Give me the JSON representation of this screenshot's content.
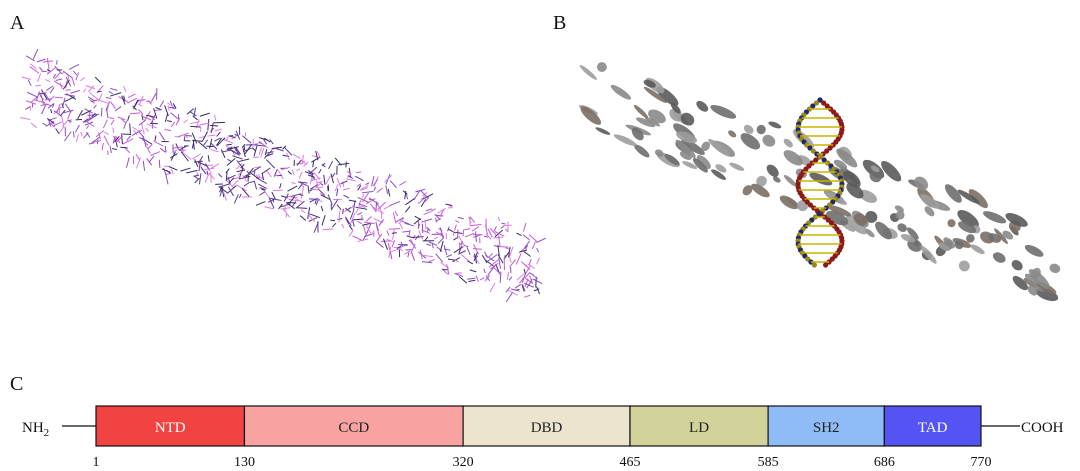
{
  "panels": [
    {
      "label": "A"
    },
    {
      "label": "B"
    },
    {
      "label": "C"
    }
  ],
  "domain_diagram": {
    "n_terminus": {
      "text": "NH",
      "subscript": "2"
    },
    "c_terminus": "COOH",
    "positions": [
      1,
      130,
      320,
      465,
      585,
      686,
      770
    ],
    "domains": [
      {
        "name": "NTD",
        "color": "#f24343",
        "text_color": "#ffffff"
      },
      {
        "name": "CCD",
        "color": "#f8a2a2",
        "text_color": "#222222"
      },
      {
        "name": "DBD",
        "color": "#ece4cf",
        "text_color": "#222222"
      },
      {
        "name": "LD",
        "color": "#d1d39b",
        "text_color": "#222222"
      },
      {
        "name": "SH2",
        "color": "#8fbcf6",
        "text_color": "#222222"
      },
      {
        "name": "TAD",
        "color": "#5454f4",
        "text_color": "#ffffff"
      }
    ]
  }
}
